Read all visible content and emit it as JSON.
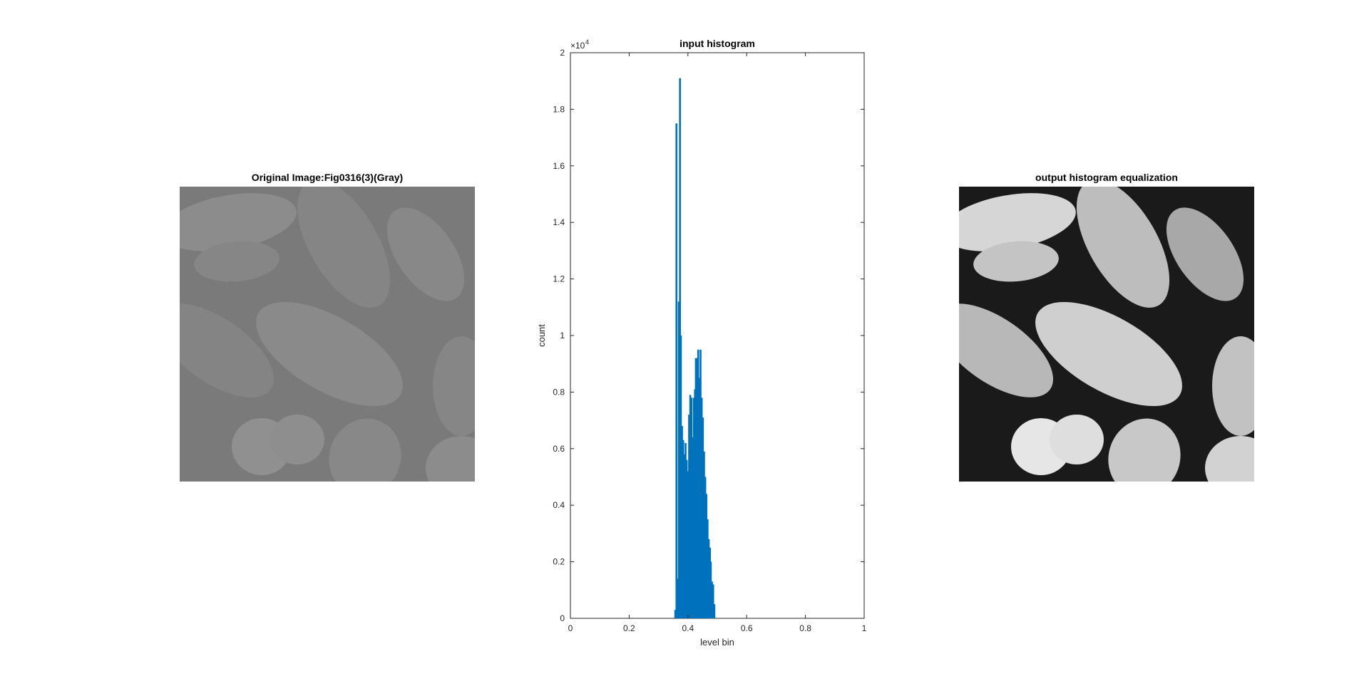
{
  "panels": {
    "left_title": "Original Image:Fig0316(3)(Gray)",
    "right_title": "output histogram equalization"
  },
  "chart_data": {
    "type": "bar",
    "title": "input histogram",
    "xlabel": "level bin",
    "ylabel": "count",
    "xlim": [
      0,
      1
    ],
    "ylim": [
      0,
      20000
    ],
    "y_exponent_label": "×10",
    "y_exponent_power": "4",
    "x_ticks": [
      "0",
      "0.2",
      "0.4",
      "0.6",
      "0.8",
      "1"
    ],
    "y_ticks": [
      "0",
      "0.2",
      "0.4",
      "0.6",
      "0.8",
      "1",
      "1.2",
      "1.4",
      "1.6",
      "1.8",
      "2"
    ],
    "bar_color": "#0072bd",
    "bins": [
      0.357,
      0.361,
      0.365,
      0.369,
      0.373,
      0.376,
      0.38,
      0.384,
      0.388,
      0.392,
      0.396,
      0.4,
      0.404,
      0.408,
      0.412,
      0.416,
      0.42,
      0.424,
      0.427,
      0.431,
      0.435,
      0.439,
      0.443,
      0.447,
      0.451,
      0.455,
      0.459,
      0.463,
      0.467,
      0.471,
      0.475,
      0.478,
      0.482,
      0.486,
      0.49,
      0.494,
      0.498,
      0.502,
      0.506,
      0.51,
      0.514,
      0.518,
      0.522,
      0.525,
      0.529
    ],
    "values": [
      300,
      17500,
      1400,
      11200,
      19100,
      10000,
      6800,
      6300,
      5800,
      6200,
      5600,
      5200,
      7200,
      7900,
      7800,
      6400,
      7800,
      8100,
      9200,
      9200,
      9500,
      8500,
      9500,
      7800,
      7100,
      5900,
      5000,
      4400,
      3500,
      2800,
      2500,
      2000,
      1300,
      1200,
      500,
      0,
      0,
      0,
      0,
      0,
      0,
      0,
      0,
      0,
      0
    ]
  }
}
